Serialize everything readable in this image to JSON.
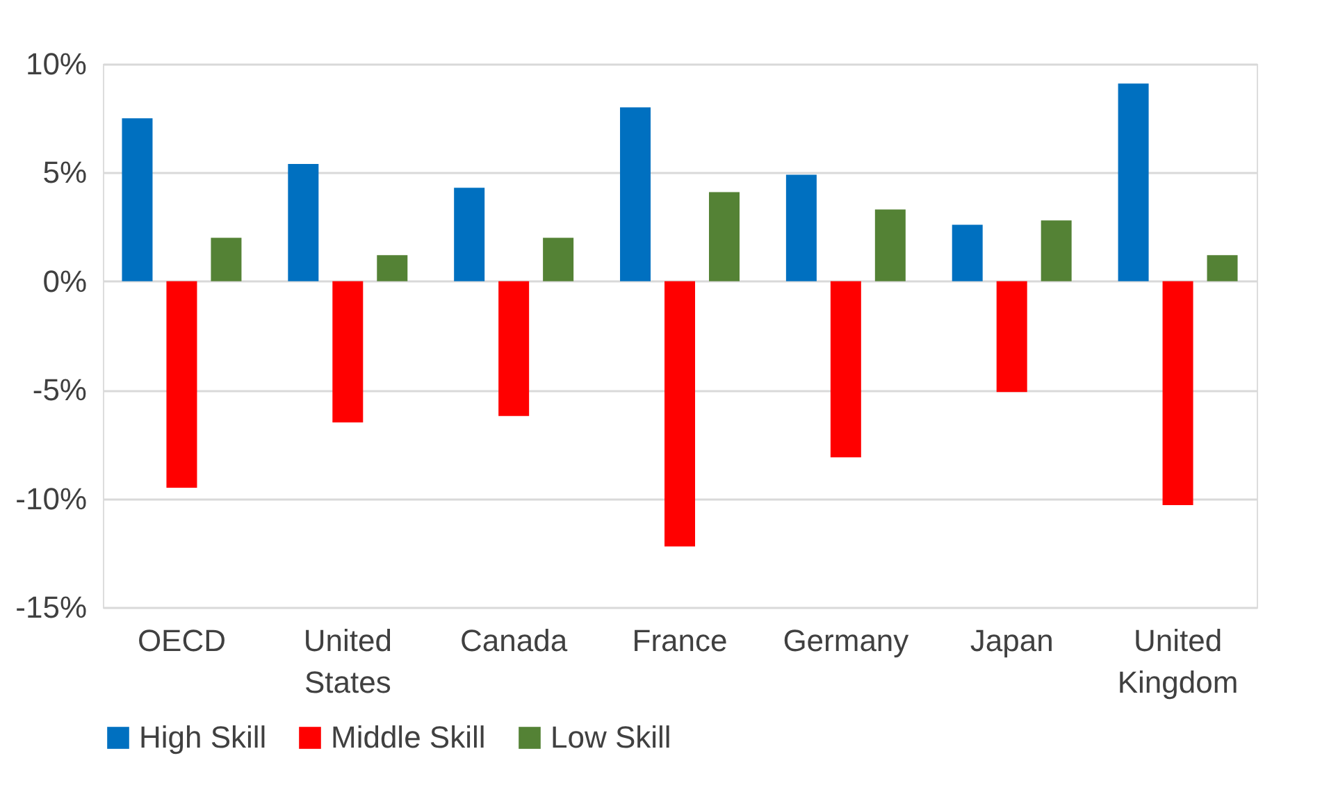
{
  "chart_data": {
    "type": "bar",
    "categories": [
      "OECD",
      "United States",
      "Canada",
      "France",
      "Germany",
      "Japan",
      "United Kingdom"
    ],
    "series": [
      {
        "name": "High Skill",
        "color": "#0070c0",
        "values": [
          7.5,
          5.4,
          4.3,
          8.0,
          4.9,
          2.6,
          9.1
        ]
      },
      {
        "name": "Middle Skill",
        "color": "#ff0000",
        "values": [
          -9.5,
          -6.5,
          -6.2,
          -12.2,
          -8.1,
          -5.1,
          -10.3
        ]
      },
      {
        "name": "Low Skill",
        "color": "#548235",
        "values": [
          2.0,
          1.2,
          2.0,
          4.1,
          3.3,
          2.8,
          1.2
        ]
      }
    ],
    "ylim": [
      -15,
      10
    ],
    "yticks": [
      {
        "value": -15,
        "label": "-15%"
      },
      {
        "value": -10,
        "label": "-10%"
      },
      {
        "value": -5,
        "label": "-5%"
      },
      {
        "value": 0,
        "label": "0%"
      },
      {
        "value": 5,
        "label": "5%"
      },
      {
        "value": 10,
        "label": "10%"
      }
    ],
    "grid": "y",
    "legend": "bottom"
  }
}
